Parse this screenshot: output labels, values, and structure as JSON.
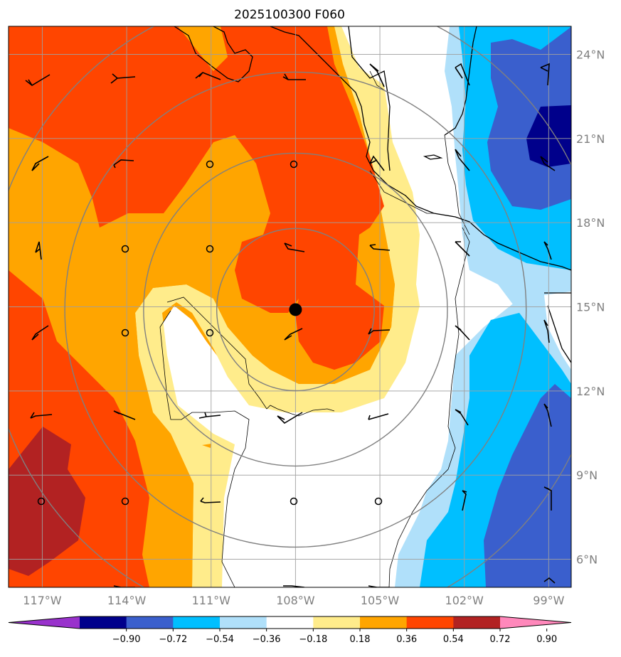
{
  "title": "2025100300 F060",
  "map": {
    "lon_range": [
      -118.2,
      -98.2
    ],
    "lat_range": [
      5,
      25
    ],
    "lon_ticks": [
      {
        "value": -117,
        "label": "117°W"
      },
      {
        "value": -114,
        "label": "114°W"
      },
      {
        "value": -111,
        "label": "111°W"
      },
      {
        "value": -108,
        "label": "108°W"
      },
      {
        "value": -105,
        "label": "105°W"
      },
      {
        "value": -102,
        "label": "102°W"
      },
      {
        "value": -99,
        "label": "99°W"
      }
    ],
    "lat_ticks": [
      {
        "value": 6,
        "label": "6°N"
      },
      {
        "value": 9,
        "label": "9°N"
      },
      {
        "value": 12,
        "label": "12°N"
      },
      {
        "value": 15,
        "label": "15°N"
      },
      {
        "value": 18,
        "label": "18°N"
      },
      {
        "value": 21,
        "label": "21°N"
      },
      {
        "value": 24,
        "label": "24°N"
      }
    ],
    "storm_center": {
      "lon": -108,
      "lat": 14.9
    },
    "range_rings_deg": [
      2.8,
      5.4,
      8.2,
      11
    ],
    "grid": true
  },
  "colorbar": {
    "labels": [
      "−0.90",
      "−0.72",
      "−0.54",
      "−0.36",
      "−0.18",
      "0.18",
      "0.36",
      "0.54",
      "0.72",
      "0.90"
    ],
    "colors": [
      "#9932cc",
      "#00008b",
      "#3a5fcd",
      "#00bfff",
      "#b0e0fa",
      "#ffffff",
      "#ffec8b",
      "#ffa500",
      "#ff4500",
      "#b22222",
      "#ff88bb"
    ]
  }
}
